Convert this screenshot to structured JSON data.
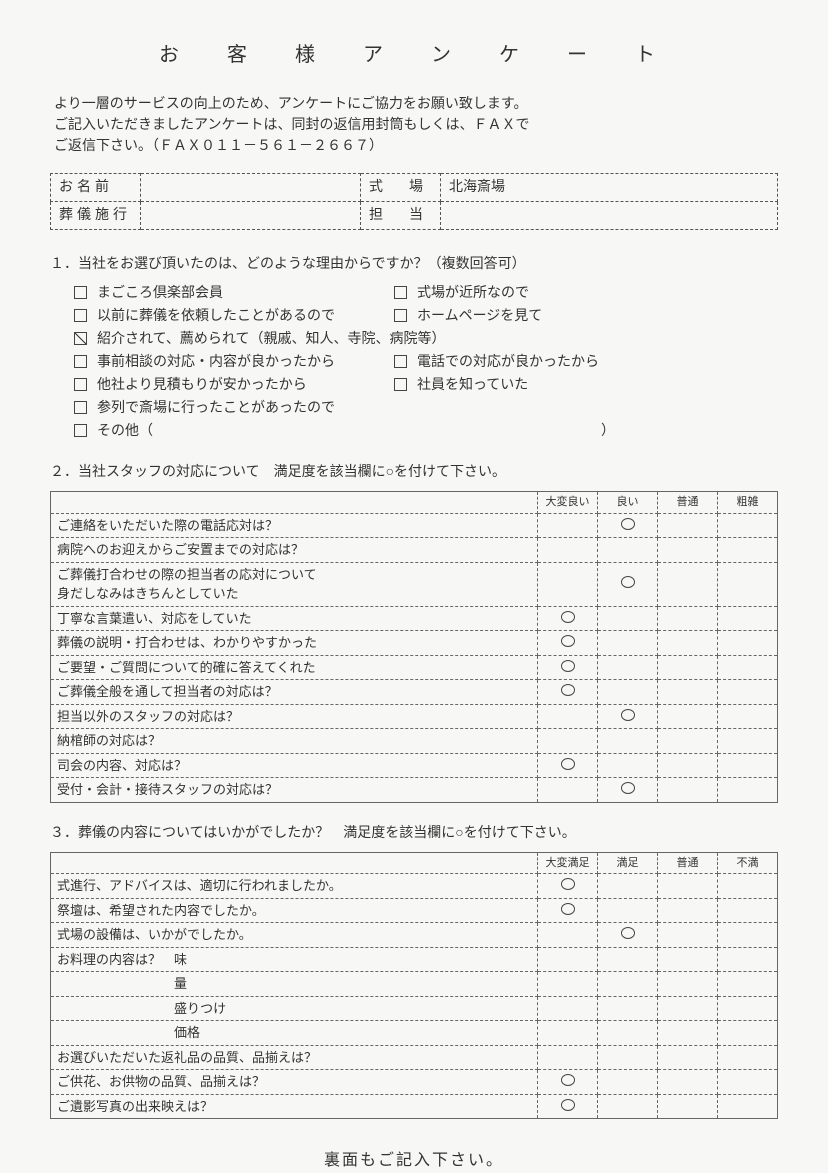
{
  "title": "お　客　様　ア　ン　ケ　ー　ト",
  "intro_line1": "より一層のサービスの向上のため、アンケートにご協力をお願い致します。",
  "intro_line2": "ご記入いただきましたアンケートは、同封の返信用封筒もしくは、ＦＡＸで",
  "intro_line3": "ご返信下さい。（ＦＡＸ０１１－５６１－２６６７）",
  "info": {
    "name_label": "お名前",
    "name_value": "",
    "venue_label": "式　場",
    "venue_value": "北海斎場",
    "service_label": "葬儀施行",
    "service_value": "",
    "staff_label": "担　当",
    "staff_value": ""
  },
  "q1": {
    "prompt": "１．当社をお選び頂いたのは、どのような理由からですか？（複数回答可）",
    "rows": [
      [
        {
          "label": "まごころ倶楽部会員",
          "checked": false
        },
        {
          "label": "式場が近所なので",
          "checked": false
        }
      ],
      [
        {
          "label": "以前に葬儀を依頼したことがあるので",
          "checked": false
        },
        {
          "label": "ホームページを見て",
          "checked": false
        }
      ],
      [
        {
          "label": "紹介されて、薦められて（親戚、知人、寺院、病院等）",
          "checked": true
        }
      ],
      [
        {
          "label": "事前相談の対応・内容が良かったから",
          "checked": false
        },
        {
          "label": "電話での対応が良かったから",
          "checked": false
        }
      ],
      [
        {
          "label": "他社より見積もりが安かったから",
          "checked": false
        },
        {
          "label": "社員を知っていた",
          "checked": false
        }
      ],
      [
        {
          "label": "参列で斎場に行ったことがあったので",
          "checked": false
        }
      ],
      [
        {
          "label": "その他（　　　　　　　　　　　　　　　　　　　　　　　　　　　　　　　　）",
          "checked": false
        }
      ]
    ]
  },
  "q2": {
    "prompt": "２．当社スタッフの対応について　満足度を該当欄に○を付けて下さい。",
    "headers": [
      "",
      "大変良い",
      "良い",
      "普通",
      "粗雑"
    ],
    "rows": [
      {
        "q": "ご連絡をいただいた際の電話応対は？",
        "marks": [
          "",
          "O",
          "",
          ""
        ]
      },
      {
        "q": "病院へのお迎えからご安置までの対応は？",
        "marks": [
          "",
          "",
          "",
          ""
        ]
      },
      {
        "q": "ご葬儀打合わせの際の担当者の応対について\n身だしなみはきちんとしていた",
        "marks": [
          "",
          "O",
          "",
          ""
        ]
      },
      {
        "q": "丁寧な言葉遣い、対応をしていた",
        "marks": [
          "O",
          "",
          "",
          ""
        ]
      },
      {
        "q": "葬儀の説明・打合わせは、わかりやすかった",
        "marks": [
          "O",
          "",
          "",
          ""
        ]
      },
      {
        "q": "ご要望・ご質問について的確に答えてくれた",
        "marks": [
          "O",
          "",
          "",
          ""
        ]
      },
      {
        "q": "ご葬儀全般を通して担当者の対応は？",
        "marks": [
          "O",
          "",
          "",
          ""
        ]
      },
      {
        "q": "担当以外のスタッフの対応は？",
        "marks": [
          "",
          "O",
          "",
          ""
        ]
      },
      {
        "q": "納棺師の対応は？",
        "marks": [
          "",
          "",
          "",
          ""
        ]
      },
      {
        "q": "司会の内容、対応は？",
        "marks": [
          "O",
          "",
          "",
          ""
        ]
      },
      {
        "q": "受付・会計・接待スタッフの対応は？",
        "marks": [
          "",
          "O",
          "",
          ""
        ]
      }
    ]
  },
  "q3": {
    "prompt": "３．葬儀の内容についてはいかがでしたか？　満足度を該当欄に○を付けて下さい。",
    "headers": [
      "",
      "大変満足",
      "満足",
      "普通",
      "不満"
    ],
    "rows": [
      {
        "q": "式進行、アドバイスは、適切に行われましたか。",
        "marks": [
          "O",
          "",
          "",
          ""
        ]
      },
      {
        "q": "祭壇は、希望された内容でしたか。",
        "marks": [
          "O",
          "",
          "",
          ""
        ]
      },
      {
        "q": "式場の設備は、いかがでしたか。",
        "marks": [
          "",
          "O",
          "",
          ""
        ]
      },
      {
        "q": "お料理の内容は？　味",
        "marks": [
          "",
          "",
          "",
          ""
        ]
      },
      {
        "q": "　　　　　　　　　量",
        "marks": [
          "",
          "",
          "",
          ""
        ]
      },
      {
        "q": "　　　　　　　　　盛りつけ",
        "marks": [
          "",
          "",
          "",
          ""
        ]
      },
      {
        "q": "　　　　　　　　　価格",
        "marks": [
          "",
          "",
          "",
          ""
        ]
      },
      {
        "q": "お選びいただいた返礼品の品質、品揃えは？",
        "marks": [
          "",
          "",
          "",
          ""
        ]
      },
      {
        "q": "ご供花、お供物の品質、品揃えは？",
        "marks": [
          "O",
          "",
          "",
          ""
        ]
      },
      {
        "q": "ご遺影写真の出来映えは？",
        "marks": [
          "O",
          "",
          "",
          ""
        ]
      }
    ]
  },
  "footer": "裏面もご記入下さい。"
}
